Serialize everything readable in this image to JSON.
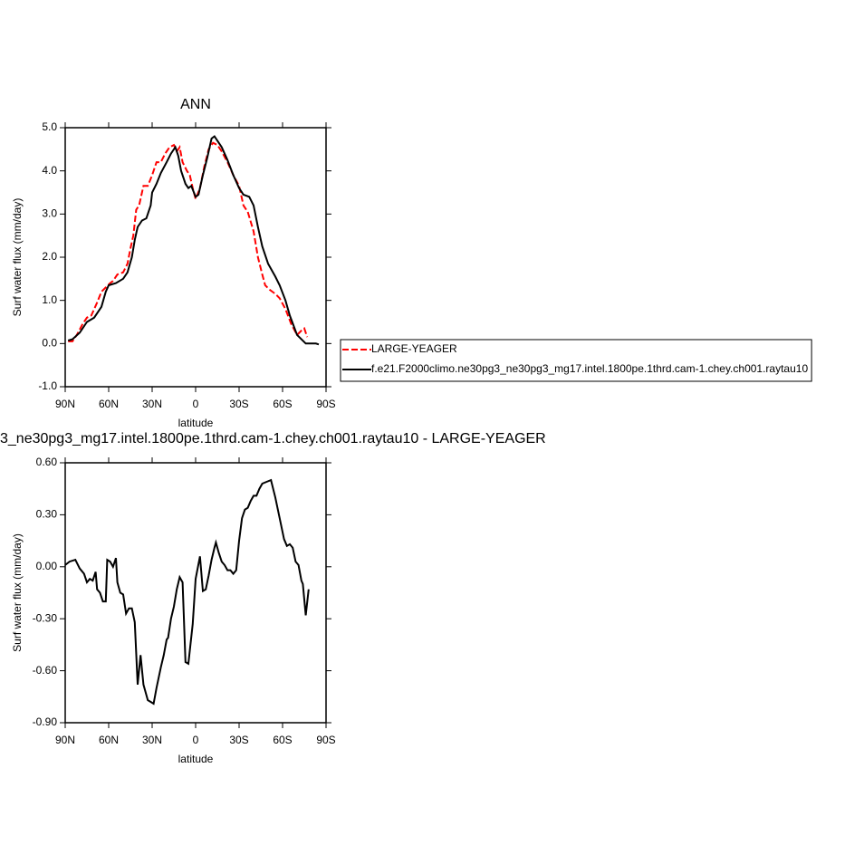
{
  "chart_data": [
    {
      "type": "line",
      "title": "ANN",
      "x_label": "latitude",
      "y_label": "Surf water flux (mm/day)",
      "xlim": [
        90,
        -90
      ],
      "xticks": [
        {
          "value": 90,
          "label": "90N"
        },
        {
          "value": 60,
          "label": "60N"
        },
        {
          "value": 30,
          "label": "30N"
        },
        0,
        {
          "value": -30,
          "label": "30S"
        },
        {
          "value": -60,
          "label": "60S"
        },
        {
          "value": -90,
          "label": "90S"
        }
      ],
      "ylim": [
        -1,
        5
      ],
      "yticks": [
        {
          "value": -1,
          "label": "-1.0"
        },
        {
          "value": 0,
          "label": "0.0"
        },
        {
          "value": 1,
          "label": "1.0"
        },
        {
          "value": 2,
          "label": "2.0"
        },
        {
          "value": 3,
          "label": "3.0"
        },
        {
          "value": 4,
          "label": "4.0"
        },
        {
          "value": 5,
          "label": "5.0"
        }
      ],
      "legend": "right",
      "series": [
        {
          "name": "LARGE-YEAGER",
          "color": "#ff0000",
          "line_style": "dashed",
          "x": [
            88,
            85,
            82,
            78,
            75,
            72,
            68,
            65,
            62,
            59,
            57,
            54,
            50,
            47,
            45,
            43,
            41,
            39,
            36,
            33,
            30,
            27,
            24,
            21,
            18,
            15,
            13,
            11,
            9,
            6,
            4,
            2,
            0,
            -3,
            -6,
            -9,
            -12,
            -15,
            -18,
            -22,
            -26,
            -30,
            -33,
            -36,
            -40,
            -43,
            -46,
            -48,
            -51,
            -55,
            -58,
            -62,
            -66,
            -70,
            -73,
            -75,
            -77
          ],
          "values": [
            0.05,
            0.05,
            0.2,
            0.45,
            0.6,
            0.65,
            0.95,
            1.2,
            1.3,
            1.4,
            1.45,
            1.6,
            1.65,
            1.85,
            2.2,
            2.5,
            3.1,
            3.2,
            3.65,
            3.65,
            3.9,
            4.2,
            4.2,
            4.4,
            4.55,
            4.6,
            4.45,
            4.55,
            4.2,
            4.0,
            3.9,
            3.6,
            3.35,
            3.6,
            4.1,
            4.5,
            4.65,
            4.6,
            4.45,
            4.2,
            3.9,
            3.65,
            3.2,
            3.05,
            2.6,
            2.0,
            1.6,
            1.35,
            1.25,
            1.15,
            1.05,
            0.8,
            0.45,
            0.2,
            0.3,
            0.35,
            0.15
          ]
        },
        {
          "name": "f.e21.F2000climo.ne30pg3_ne30pg3_mg17.intel.1800pe.1thrd.cam-1.chey.ch001.raytau10",
          "color": "#000000",
          "line_style": "solid",
          "x": [
            88,
            85,
            80,
            75,
            70,
            65,
            62,
            60,
            55,
            50,
            47,
            44,
            42,
            40,
            37,
            34,
            31,
            30,
            27,
            24,
            20,
            17,
            14,
            12,
            10,
            7,
            5,
            3,
            0,
            -2,
            -5,
            -8,
            -11,
            -13,
            -15,
            -18,
            -22,
            -26,
            -30,
            -33,
            -37,
            -40,
            -43,
            -46,
            -50,
            -55,
            -58,
            -62,
            -65,
            -70,
            -73,
            -76,
            -80,
            -83,
            -85
          ],
          "values": [
            0.07,
            0.1,
            0.25,
            0.5,
            0.6,
            0.85,
            1.2,
            1.35,
            1.4,
            1.5,
            1.65,
            2.0,
            2.4,
            2.7,
            2.85,
            2.9,
            3.2,
            3.5,
            3.7,
            3.95,
            4.2,
            4.4,
            4.55,
            4.35,
            4.0,
            3.7,
            3.6,
            3.65,
            3.4,
            3.45,
            3.9,
            4.3,
            4.75,
            4.8,
            4.7,
            4.55,
            4.25,
            3.9,
            3.6,
            3.45,
            3.4,
            3.2,
            2.7,
            2.25,
            1.85,
            1.55,
            1.35,
            1.0,
            0.65,
            0.2,
            0.1,
            0.0,
            0.0,
            0.0,
            -0.02
          ]
        }
      ]
    },
    {
      "type": "line",
      "title": "3_ne30pg3_mg17.intel.1800pe.1thrd.cam-1.chey.ch001.raytau10 - LARGE-YEAGER",
      "x_label": "latitude",
      "y_label": "Surf water flux (mm/day)",
      "xlim": [
        90,
        -90
      ],
      "xticks": [
        {
          "value": 90,
          "label": "90N"
        },
        {
          "value": 60,
          "label": "60N"
        },
        {
          "value": 30,
          "label": "30N"
        },
        0,
        {
          "value": -30,
          "label": "30S"
        },
        {
          "value": -60,
          "label": "60S"
        },
        {
          "value": -90,
          "label": "90S"
        }
      ],
      "ylim": [
        -0.9,
        0.6
      ],
      "yticks": [
        {
          "value": -0.9,
          "label": "-0.90"
        },
        {
          "value": -0.6,
          "label": "-0.60"
        },
        {
          "value": -0.3,
          "label": "-0.30"
        },
        {
          "value": 0,
          "label": "0.00"
        },
        {
          "value": 0.3,
          "label": "0.30"
        },
        {
          "value": 0.6,
          "label": "0.60"
        }
      ],
      "series": [
        {
          "color": "#000000",
          "line_style": "solid",
          "x": [
            90,
            87,
            83,
            80,
            77,
            75,
            73,
            71,
            69,
            68,
            66,
            64,
            62,
            61,
            59,
            57,
            55,
            54,
            52,
            50,
            48,
            46,
            44,
            42,
            40,
            38,
            36,
            33,
            31,
            29,
            27,
            24,
            22,
            20,
            19,
            17,
            15,
            13,
            11,
            9,
            7,
            5,
            2,
            0,
            -3,
            -5,
            -7,
            -9,
            -11,
            -13,
            -14,
            -16,
            -18,
            -20,
            -22,
            -24,
            -26,
            -28,
            -30,
            -32,
            -34,
            -36,
            -38,
            -40,
            -42,
            -44,
            -46,
            -49,
            -52,
            -55,
            -58,
            -61,
            -63,
            -65,
            -67,
            -69,
            -71,
            -73,
            -74,
            -76,
            -78
          ],
          "values": [
            0.01,
            0.03,
            0.04,
            -0.01,
            -0.04,
            -0.09,
            -0.07,
            -0.08,
            -0.03,
            -0.13,
            -0.15,
            -0.2,
            -0.2,
            0.04,
            0.03,
            0.0,
            0.05,
            -0.09,
            -0.15,
            -0.16,
            -0.27,
            -0.24,
            -0.24,
            -0.32,
            -0.68,
            -0.51,
            -0.68,
            -0.77,
            -0.78,
            -0.79,
            -0.7,
            -0.58,
            -0.51,
            -0.42,
            -0.41,
            -0.3,
            -0.23,
            -0.13,
            -0.06,
            -0.09,
            -0.55,
            -0.56,
            -0.33,
            -0.07,
            0.06,
            -0.14,
            -0.13,
            -0.05,
            0.04,
            0.11,
            0.14,
            0.08,
            0.03,
            0.01,
            -0.02,
            -0.02,
            -0.04,
            -0.02,
            0.15,
            0.28,
            0.33,
            0.34,
            0.38,
            0.41,
            0.41,
            0.45,
            0.48,
            0.49,
            0.5,
            0.4,
            0.28,
            0.16,
            0.12,
            0.13,
            0.11,
            0.03,
            0.01,
            -0.08,
            -0.1,
            -0.28,
            -0.13
          ]
        }
      ]
    }
  ]
}
